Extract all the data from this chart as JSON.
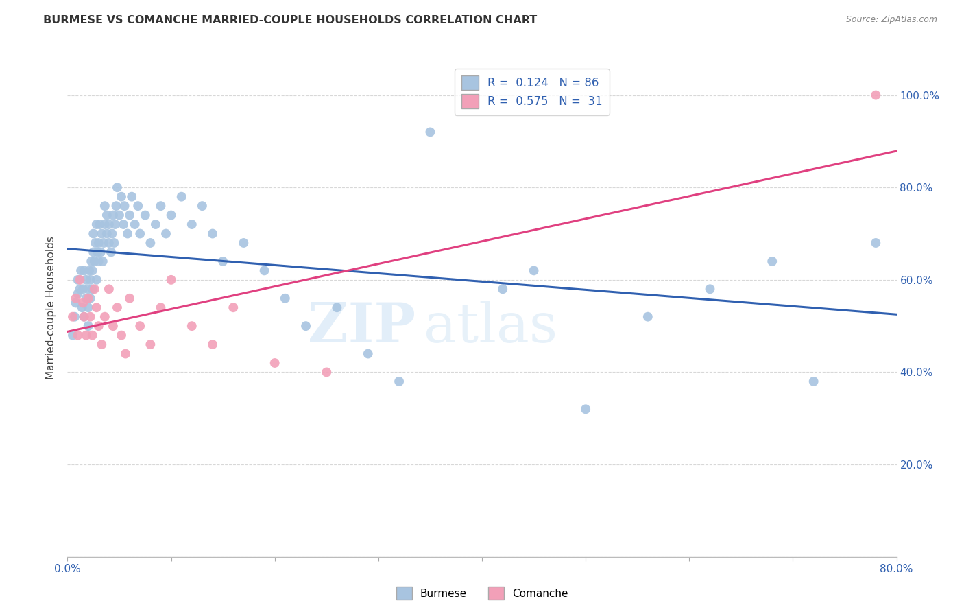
{
  "title": "BURMESE VS COMANCHE MARRIED-COUPLE HOUSEHOLDS CORRELATION CHART",
  "source": "Source: ZipAtlas.com",
  "xlabel": "",
  "ylabel": "Married-couple Households",
  "xmin": 0.0,
  "xmax": 0.8,
  "ymin": 0.0,
  "ymax": 1.08,
  "burmese_color": "#a8c4e0",
  "comanche_color": "#f2a0b8",
  "burmese_line_color": "#3060b0",
  "comanche_line_color": "#e04080",
  "burmese_R": 0.124,
  "burmese_N": 86,
  "comanche_R": 0.575,
  "comanche_N": 31,
  "background_color": "#ffffff",
  "grid_color": "#d8d8d8",
  "burmese_x": [
    0.005,
    0.007,
    0.008,
    0.01,
    0.01,
    0.012,
    0.013,
    0.014,
    0.015,
    0.016,
    0.016,
    0.018,
    0.018,
    0.02,
    0.02,
    0.02,
    0.021,
    0.022,
    0.022,
    0.023,
    0.024,
    0.024,
    0.025,
    0.025,
    0.026,
    0.027,
    0.028,
    0.028,
    0.029,
    0.03,
    0.03,
    0.031,
    0.032,
    0.033,
    0.034,
    0.035,
    0.036,
    0.036,
    0.038,
    0.038,
    0.04,
    0.04,
    0.042,
    0.043,
    0.044,
    0.045,
    0.046,
    0.047,
    0.048,
    0.05,
    0.052,
    0.054,
    0.055,
    0.058,
    0.06,
    0.062,
    0.065,
    0.068,
    0.07,
    0.075,
    0.08,
    0.085,
    0.09,
    0.095,
    0.1,
    0.11,
    0.12,
    0.13,
    0.14,
    0.15,
    0.17,
    0.19,
    0.21,
    0.23,
    0.26,
    0.29,
    0.32,
    0.35,
    0.42,
    0.45,
    0.5,
    0.56,
    0.62,
    0.68,
    0.72,
    0.78
  ],
  "burmese_y": [
    0.48,
    0.52,
    0.55,
    0.57,
    0.6,
    0.58,
    0.62,
    0.54,
    0.58,
    0.52,
    0.62,
    0.56,
    0.6,
    0.5,
    0.54,
    0.58,
    0.62,
    0.56,
    0.6,
    0.64,
    0.58,
    0.62,
    0.66,
    0.7,
    0.64,
    0.68,
    0.72,
    0.6,
    0.66,
    0.64,
    0.68,
    0.72,
    0.66,
    0.7,
    0.64,
    0.68,
    0.72,
    0.76,
    0.7,
    0.74,
    0.68,
    0.72,
    0.66,
    0.7,
    0.74,
    0.68,
    0.72,
    0.76,
    0.8,
    0.74,
    0.78,
    0.72,
    0.76,
    0.7,
    0.74,
    0.78,
    0.72,
    0.76,
    0.7,
    0.74,
    0.68,
    0.72,
    0.76,
    0.7,
    0.74,
    0.78,
    0.72,
    0.76,
    0.7,
    0.64,
    0.68,
    0.62,
    0.56,
    0.5,
    0.54,
    0.44,
    0.38,
    0.92,
    0.58,
    0.62,
    0.32,
    0.52,
    0.58,
    0.64,
    0.38,
    0.68
  ],
  "comanche_x": [
    0.005,
    0.008,
    0.01,
    0.012,
    0.015,
    0.016,
    0.018,
    0.02,
    0.022,
    0.024,
    0.026,
    0.028,
    0.03,
    0.033,
    0.036,
    0.04,
    0.044,
    0.048,
    0.052,
    0.056,
    0.06,
    0.07,
    0.08,
    0.09,
    0.1,
    0.12,
    0.14,
    0.16,
    0.2,
    0.25,
    0.78
  ],
  "comanche_y": [
    0.52,
    0.56,
    0.48,
    0.6,
    0.55,
    0.52,
    0.48,
    0.56,
    0.52,
    0.48,
    0.58,
    0.54,
    0.5,
    0.46,
    0.52,
    0.58,
    0.5,
    0.54,
    0.48,
    0.44,
    0.56,
    0.5,
    0.46,
    0.54,
    0.6,
    0.5,
    0.46,
    0.54,
    0.42,
    0.4,
    1.0
  ]
}
